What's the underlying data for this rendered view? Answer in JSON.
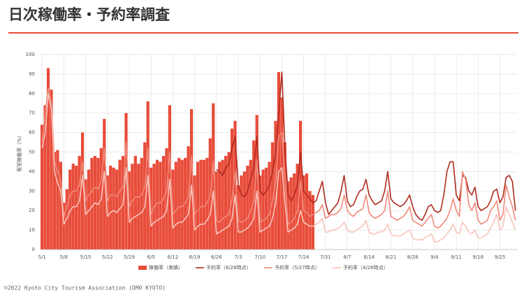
{
  "page_title": "日次稼働率・予約率調査",
  "footer": "©2022 Kyoto City Tourism Association (DMO KYOTO)",
  "chart_data": {
    "type": "bar",
    "y_label": "客室稼働率（%）",
    "ylim": [
      0,
      100
    ],
    "yticks": [
      0,
      10,
      20,
      30,
      40,
      50,
      60,
      70,
      80,
      90,
      100
    ],
    "grid": true,
    "legend": "bottom",
    "categories": [
      "5/1",
      null,
      null,
      null,
      null,
      null,
      null,
      "5/8",
      null,
      null,
      null,
      null,
      null,
      null,
      "5/15",
      null,
      null,
      null,
      null,
      null,
      null,
      "5/22",
      null,
      null,
      null,
      null,
      null,
      null,
      "5/29",
      null,
      null,
      null,
      null,
      null,
      null,
      "6/5",
      null,
      null,
      null,
      null,
      null,
      null,
      "6/12",
      null,
      null,
      null,
      null,
      null,
      null,
      "6/19",
      null,
      null,
      null,
      null,
      null,
      null,
      "6/26",
      null,
      null,
      null,
      null,
      null,
      null,
      "7/3",
      null,
      null,
      null,
      null,
      null,
      null,
      "7/10",
      null,
      null,
      null,
      null,
      null,
      null,
      "7/17",
      null,
      null,
      null,
      null,
      null,
      null,
      "7/24",
      null,
      null,
      null,
      null,
      null,
      null,
      "7/31",
      null,
      null,
      null,
      null,
      null,
      null,
      "8/7",
      null,
      null,
      null,
      null,
      null,
      null,
      "8/14",
      null,
      null,
      null,
      null,
      null,
      null,
      "8/21",
      null,
      null,
      null,
      null,
      null,
      null,
      "8/28",
      null,
      null,
      null,
      null,
      null,
      null,
      "9/4",
      null,
      null,
      null,
      null,
      null,
      null,
      "9/11",
      null,
      null,
      null,
      null,
      null,
      null,
      "9/18",
      null,
      null,
      null,
      null,
      null,
      null,
      "9/25",
      null,
      null,
      null,
      null,
      null
    ],
    "series": [
      {
        "name": "稼働率（実績）",
        "type": "bar",
        "color": "#e84c3a",
        "values": [
          64,
          74,
          93,
          82,
          50,
          51,
          45,
          24,
          31,
          41,
          44,
          43,
          48,
          60,
          36,
          41,
          47,
          48,
          47,
          52,
          67,
          38,
          43,
          42,
          41,
          46,
          48,
          70,
          40,
          44,
          48,
          44,
          47,
          55,
          76,
          42,
          44,
          46,
          45,
          48,
          52,
          74,
          41,
          45,
          47,
          46,
          47,
          53,
          72,
          38,
          45,
          46,
          46,
          47,
          57,
          75,
          40,
          45,
          46,
          48,
          50,
          62,
          66,
          33,
          38,
          40,
          43,
          46,
          56,
          69,
          38,
          41,
          42,
          45,
          55,
          66,
          91,
          78,
          55,
          35,
          37,
          39,
          44,
          66,
          38,
          39,
          30,
          28,
          null,
          null,
          null,
          null,
          null,
          null,
          null,
          null,
          null,
          null,
          null,
          null,
          null,
          null,
          null,
          null,
          null,
          null,
          null,
          null,
          null,
          null,
          null,
          null,
          null,
          null,
          null,
          null,
          null,
          null,
          null,
          null,
          null,
          null,
          null,
          null,
          null,
          null,
          null,
          null,
          null,
          null,
          null,
          null,
          null,
          null,
          null,
          null,
          null,
          null,
          null,
          null,
          null,
          null,
          null,
          null,
          null,
          null,
          null,
          null,
          null,
          null,
          null,
          null,
          null
        ]
      },
      {
        "name": "予約率（6/28時点）",
        "type": "line",
        "color": "#b02a1e",
        "values": [
          null,
          null,
          null,
          null,
          null,
          null,
          null,
          null,
          null,
          null,
          null,
          null,
          null,
          null,
          null,
          null,
          null,
          null,
          null,
          null,
          null,
          null,
          null,
          null,
          null,
          null,
          null,
          null,
          null,
          null,
          null,
          null,
          null,
          null,
          null,
          null,
          null,
          null,
          null,
          null,
          null,
          null,
          null,
          null,
          null,
          null,
          null,
          null,
          null,
          null,
          null,
          null,
          null,
          null,
          null,
          null,
          41,
          40,
          38,
          42,
          44,
          52,
          58,
          33,
          28,
          27,
          30,
          36,
          42,
          58,
          30,
          28,
          30,
          33,
          40,
          50,
          70,
          91,
          52,
          28,
          25,
          28,
          33,
          50,
          30,
          28,
          26,
          24,
          25,
          30,
          35,
          24,
          18,
          20,
          22,
          24,
          30,
          38,
          25,
          22,
          23,
          27,
          30,
          31,
          36,
          28,
          25,
          23,
          24,
          25,
          30,
          40,
          26,
          24,
          23,
          22,
          23,
          25,
          28,
          22,
          18,
          16,
          15,
          18,
          22,
          23,
          20,
          19,
          20,
          28,
          40,
          45,
          45,
          28,
          25,
          38,
          37,
          30,
          28,
          32,
          22,
          20,
          21,
          22,
          25,
          30,
          31,
          24,
          27,
          37,
          38,
          35,
          20
        ]
      },
      {
        "name": "予約率（5/27時点）",
        "type": "line",
        "color": "#f08a7a",
        "values": [
          55,
          70,
          83,
          75,
          45,
          40,
          35,
          17,
          22,
          28,
          30,
          30,
          33,
          45,
          25,
          28,
          30,
          32,
          31,
          35,
          52,
          25,
          28,
          28,
          27,
          30,
          32,
          55,
          22,
          25,
          27,
          27,
          28,
          32,
          52,
          18,
          22,
          24,
          24,
          26,
          30,
          50,
          18,
          20,
          22,
          22,
          24,
          27,
          48,
          18,
          20,
          22,
          22,
          24,
          28,
          45,
          15,
          14,
          16,
          17,
          18,
          26,
          40,
          15,
          14,
          15,
          16,
          20,
          25,
          46,
          14,
          15,
          16,
          18,
          25,
          35,
          58,
          60,
          35,
          13,
          14,
          16,
          20,
          35,
          20,
          19,
          17,
          18,
          19,
          20,
          23,
          16,
          17,
          18,
          18,
          19,
          21,
          28,
          20,
          18,
          17,
          19,
          20,
          21,
          28,
          19,
          17,
          16,
          17,
          18,
          20,
          30,
          17,
          16,
          15,
          16,
          17,
          19,
          22,
          15,
          14,
          13,
          12,
          14,
          16,
          18,
          12,
          11,
          12,
          14,
          16,
          20,
          26,
          20,
          17,
          40,
          36,
          23,
          20,
          24,
          15,
          13,
          14,
          15,
          20,
          22,
          25,
          15,
          18,
          33,
          27,
          22,
          15
        ]
      },
      {
        "name": "予約率（4/26時点）",
        "type": "line",
        "color": "#f8c4bb",
        "values": [
          52,
          60,
          80,
          72,
          40,
          34,
          30,
          13,
          16,
          20,
          22,
          22,
          25,
          38,
          18,
          20,
          22,
          24,
          23,
          26,
          40,
          17,
          19,
          20,
          19,
          21,
          23,
          42,
          14,
          16,
          17,
          18,
          19,
          22,
          38,
          12,
          14,
          15,
          16,
          17,
          20,
          36,
          11,
          13,
          14,
          14,
          16,
          18,
          33,
          10,
          12,
          13,
          13,
          15,
          18,
          30,
          8,
          9,
          10,
          11,
          12,
          16,
          28,
          9,
          9,
          10,
          11,
          13,
          16,
          30,
          9,
          10,
          11,
          12,
          16,
          24,
          40,
          42,
          24,
          9,
          10,
          11,
          13,
          20,
          14,
          13,
          12,
          12,
          13,
          14,
          16,
          9,
          9,
          10,
          10,
          11,
          12,
          14,
          10,
          9,
          9,
          10,
          11,
          12,
          15,
          9,
          8,
          8,
          9,
          9,
          10,
          13,
          8,
          7,
          7,
          7,
          8,
          9,
          10,
          6,
          5,
          5,
          5,
          6,
          7,
          8,
          4,
          4,
          5,
          6,
          8,
          10,
          13,
          9,
          8,
          14,
          12,
          9,
          8,
          10,
          6,
          6,
          7,
          8,
          11,
          14,
          18,
          10,
          12,
          22,
          18,
          14,
          10
        ]
      }
    ]
  }
}
